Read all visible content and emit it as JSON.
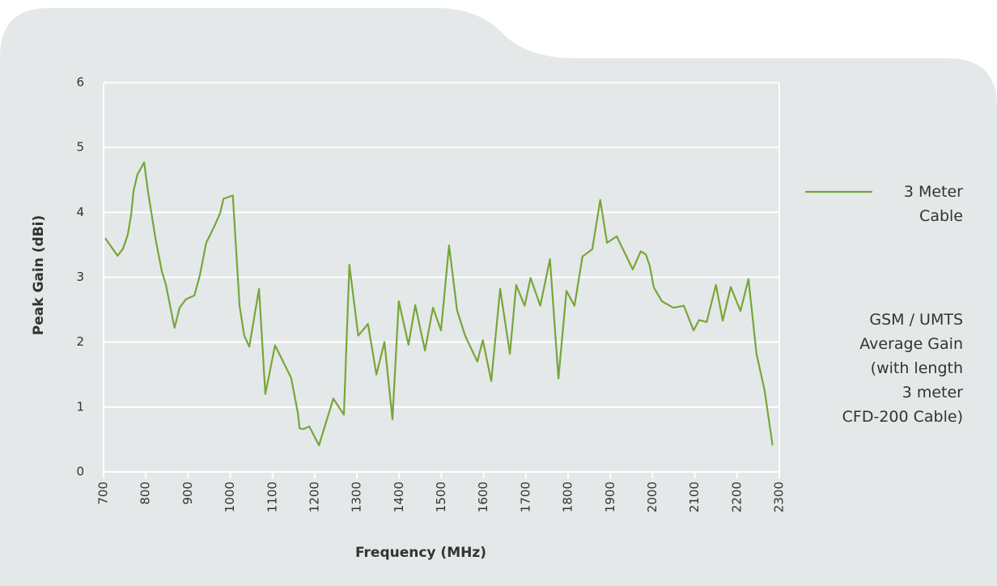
{
  "chart_data": {
    "type": "line",
    "xlabel": "Frequency (MHz)",
    "ylabel": "Peak Gain (dBi)",
    "annotation": [
      "GSM / UMTS",
      "Average Gain",
      "(with length",
      "3 meter",
      "CFD-200 Cable)"
    ],
    "x": [
      704,
      733,
      746,
      757,
      765,
      771,
      780,
      796,
      805,
      823,
      838,
      847,
      868,
      880,
      895,
      915,
      928,
      943,
      962,
      976,
      984,
      1006,
      1022,
      1033,
      1045,
      1068,
      1083,
      1106,
      1144,
      1160,
      1164,
      1173,
      1187,
      1210,
      1244,
      1269,
      1282,
      1303,
      1326,
      1346,
      1365,
      1384,
      1399,
      1422,
      1438,
      1461,
      1480,
      1499,
      1518,
      1537,
      1556,
      1585,
      1598,
      1618,
      1639,
      1662,
      1677,
      1697,
      1711,
      1734,
      1757,
      1777,
      1796,
      1815,
      1834,
      1857,
      1876,
      1892,
      1915,
      1953,
      1972,
      1984,
      1993,
      2003,
      2022,
      2049,
      2074,
      2097,
      2110,
      2128,
      2150,
      2166,
      2185,
      2208,
      2227,
      2246,
      2265,
      2284
    ],
    "series": [
      {
        "name": "3 Meter Cable",
        "color": "#77a637",
        "values": [
          3.6,
          3.33,
          3.44,
          3.65,
          3.95,
          4.33,
          4.58,
          4.77,
          4.33,
          3.59,
          3.09,
          2.9,
          2.22,
          2.53,
          2.66,
          2.72,
          3.03,
          3.53,
          3.78,
          3.99,
          4.21,
          4.26,
          2.56,
          2.1,
          1.93,
          2.82,
          1.2,
          1.95,
          1.45,
          0.91,
          0.67,
          0.66,
          0.7,
          0.41,
          1.13,
          0.88,
          3.19,
          2.1,
          2.28,
          1.5,
          2.0,
          0.81,
          2.63,
          1.96,
          2.57,
          1.87,
          2.53,
          2.18,
          3.49,
          2.49,
          2.1,
          1.7,
          2.03,
          1.4,
          2.82,
          1.82,
          2.88,
          2.56,
          2.99,
          2.56,
          3.28,
          1.44,
          2.79,
          2.56,
          3.32,
          3.43,
          4.19,
          3.53,
          3.63,
          3.12,
          3.4,
          3.35,
          3.18,
          2.84,
          2.63,
          2.53,
          2.56,
          2.18,
          2.34,
          2.31,
          2.88,
          2.33,
          2.85,
          2.48,
          2.97,
          1.82,
          1.26,
          0.41
        ]
      }
    ],
    "xlim": [
      700,
      2300
    ],
    "xticks": [
      700,
      800,
      900,
      1000,
      1100,
      1200,
      1300,
      1400,
      1500,
      1600,
      1700,
      1800,
      1900,
      2000,
      2100,
      2200,
      2300
    ],
    "ylim": [
      0,
      6
    ],
    "yticks": [
      0,
      1,
      2,
      3,
      4,
      5,
      6
    ],
    "grid": true,
    "legend": "right"
  }
}
